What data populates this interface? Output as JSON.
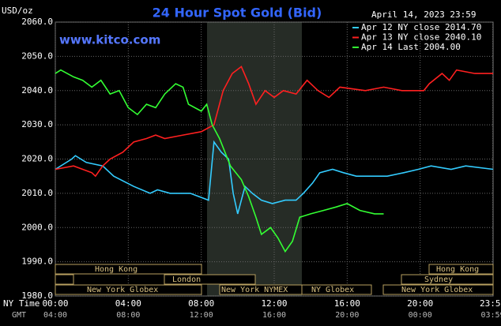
{
  "chart_data": {
    "type": "line",
    "title": "24 Hour Spot Gold (Bid)",
    "y_label": "USD/oz",
    "timestamp": "April 14, 2023 23:59",
    "source": "www.kitco.com",
    "x_axis_label": "NY Time",
    "x2_axis_label": "GMT",
    "ylim": [
      1980,
      2060
    ],
    "yticks": [
      {
        "value": 1980,
        "label": "1980.0"
      },
      {
        "value": 1990,
        "label": "1990.0"
      },
      {
        "value": 2000,
        "label": "2000.0"
      },
      {
        "value": 2010,
        "label": "2010.0"
      },
      {
        "value": 2020,
        "label": "2020.0"
      },
      {
        "value": 2030,
        "label": "2030.0"
      },
      {
        "value": 2040,
        "label": "2040.0"
      },
      {
        "value": 2050,
        "label": "2050.0"
      },
      {
        "value": 2060,
        "label": "2060.0"
      }
    ],
    "xlim": [
      0,
      24
    ],
    "xticks": [
      {
        "value": 0,
        "label": "00:00"
      },
      {
        "value": 4,
        "label": "04:00"
      },
      {
        "value": 8,
        "label": "08:00"
      },
      {
        "value": 12,
        "label": "12:00"
      },
      {
        "value": 16,
        "label": "16:00"
      },
      {
        "value": 20,
        "label": "20:00"
      },
      {
        "value": 23.98,
        "label": "23:59"
      }
    ],
    "gmt_labels": [
      "04:00",
      "08:00",
      "12:00",
      "16:00",
      "20:00",
      "00:00",
      "03:59"
    ],
    "grid": true,
    "markets": [
      "Hong Kong",
      "London",
      "New York Globex",
      "New York NYMEX",
      "NY Globex",
      "Hong Kong",
      "Sydney",
      "New York Globex"
    ],
    "series": [
      {
        "name": "Apr 12 NY close 2014.70",
        "color": "#33ccff",
        "x": [
          0,
          0.9,
          1.1,
          1.7,
          2.6,
          3.2,
          4.3,
          5.2,
          5.6,
          6.3,
          7.4,
          8.4,
          8.7,
          9.1,
          9.5,
          9.75,
          10,
          10.2,
          10.4,
          10.8,
          11.3,
          11.9,
          12.6,
          13.2,
          13.6,
          14.1,
          14.5,
          15.2,
          15.8,
          16.5,
          17.3,
          18.2,
          19.1,
          19.9,
          20.6,
          21.7,
          22.5,
          24
        ],
        "values": [
          2017,
          2020,
          2021,
          2019,
          2018,
          2015,
          2012,
          2010,
          2011,
          2010,
          2010,
          2008,
          2025,
          2022,
          2020,
          2010,
          2004,
          2008,
          2012,
          2010,
          2008,
          2007,
          2008,
          2008,
          2010,
          2013,
          2016,
          2017,
          2016,
          2015,
          2015,
          2015,
          2016,
          2017,
          2018,
          2017,
          2018,
          2017
        ]
      },
      {
        "name": "Apr 13 NY close 2040.10",
        "color": "#ff2020",
        "x": [
          0,
          1,
          1.5,
          2,
          2.2,
          2.6,
          3,
          3.7,
          4.3,
          5,
          5.5,
          6,
          7,
          8,
          8.7,
          9.2,
          9.7,
          10.2,
          10.6,
          11,
          11.5,
          12,
          12.5,
          13.2,
          13.8,
          14.4,
          15,
          15.6,
          17,
          18,
          19,
          20.2,
          20.5,
          21.2,
          21.6,
          22,
          23,
          24
        ],
        "values": [
          2017,
          2018,
          2017,
          2016,
          2015,
          2018,
          2020,
          2022,
          2025,
          2026,
          2027,
          2026,
          2027,
          2028,
          2030,
          2040,
          2045,
          2047,
          2042,
          2036,
          2040,
          2038,
          2040,
          2039,
          2043,
          2040,
          2038,
          2041,
          2040,
          2041,
          2040,
          2040,
          2042,
          2045,
          2043,
          2046,
          2045,
          2045
        ]
      },
      {
        "name": "Apr 14 Last 2004.00",
        "color": "#33ff33",
        "x": [
          0,
          0.3,
          1,
          1.5,
          2,
          2.5,
          3,
          3.5,
          4,
          4.5,
          5,
          5.5,
          6,
          6.6,
          7,
          7.3,
          8,
          8.3,
          8.6,
          9,
          9.6,
          10.2,
          10.6,
          11,
          11.3,
          11.8,
          12.2,
          12.6,
          13,
          13.4,
          14,
          14.7,
          15.4,
          16,
          16.7,
          17.5,
          18
        ],
        "values": [
          2045,
          2046,
          2044,
          2043,
          2041,
          2043,
          2039,
          2040,
          2035,
          2033,
          2036,
          2035,
          2039,
          2042,
          2041,
          2036,
          2034,
          2036,
          2030,
          2026,
          2018,
          2014,
          2009,
          2003,
          1998,
          2000,
          1997,
          1993,
          1996,
          2003,
          2004,
          2005,
          2006,
          2007,
          2005,
          2004,
          2004
        ]
      }
    ]
  }
}
